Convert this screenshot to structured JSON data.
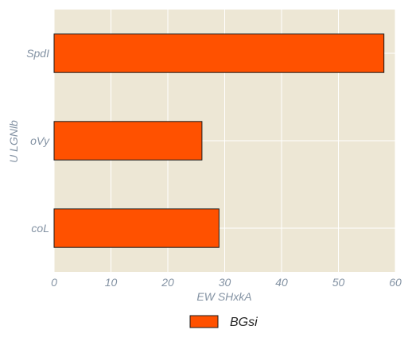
{
  "chart_data": {
    "type": "bar",
    "orientation": "horizontal",
    "categories": [
      "SpdI",
      "oVy",
      "coL"
    ],
    "series": [
      {
        "name": "BGsi",
        "values": [
          58,
          26,
          29
        ]
      }
    ],
    "xlabel": "EW SHxkA",
    "ylabel": "U LGNlb",
    "xlim": [
      0,
      60
    ],
    "xticks": [
      0,
      10,
      20,
      30,
      40,
      50,
      60
    ],
    "grid": true,
    "legend": "bottom-center",
    "colors": {
      "bar": "#ff5100",
      "bar_edge": "#1a1a1a",
      "plot_bg": "#ede7d5",
      "grid": "#ffffff",
      "tick_text": "#8392a3",
      "label_text": "#8392a3"
    }
  }
}
